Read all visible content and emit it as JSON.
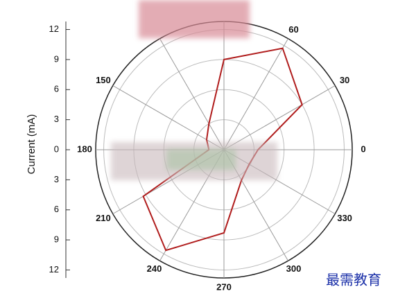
{
  "chart_data": {
    "type": "polar",
    "y_label": "Current (mA)",
    "ylim": [
      -12.8,
      12.8
    ],
    "yticks": [
      {
        "value": -12,
        "label": "12"
      },
      {
        "value": -9,
        "label": "9"
      },
      {
        "value": -6,
        "label": "6"
      },
      {
        "value": -3,
        "label": "3"
      },
      0,
      3,
      6,
      9,
      12
    ],
    "rlim": [
      0,
      12.8
    ],
    "rticks": [
      3,
      6,
      9,
      12
    ],
    "thetaticks": [
      0,
      30,
      60,
      90,
      120,
      150,
      180,
      210,
      240,
      270,
      300,
      330
    ],
    "thetaticks_shown": [
      true,
      true,
      true,
      false,
      false,
      true,
      true,
      true,
      true,
      true,
      true,
      true
    ],
    "theta": [
      0,
      30,
      60,
      90,
      120,
      150,
      180,
      210,
      240,
      270,
      300,
      330
    ],
    "series": [
      {
        "color": "#b01c1c",
        "values": [
          3.4,
          9.0,
          11.7,
          9.0,
          3.0,
          2.0,
          1.5,
          9.3,
          11.6,
          8.3,
          3.5,
          2.9
        ]
      }
    ],
    "grid": true,
    "watermark": "最需教育"
  }
}
